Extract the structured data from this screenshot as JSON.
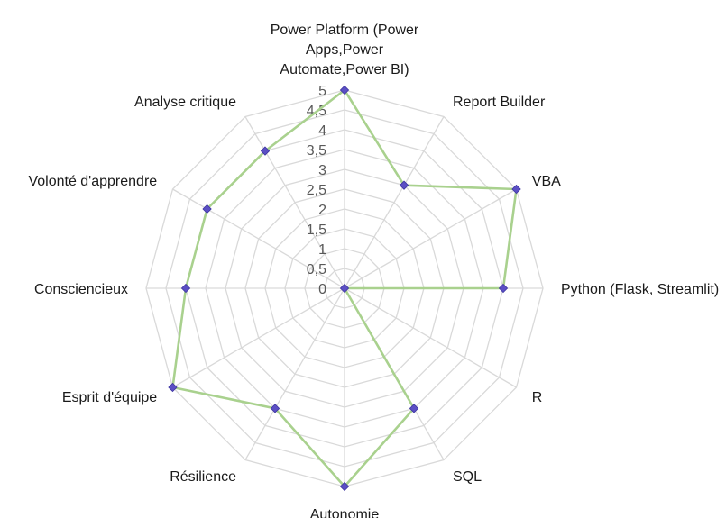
{
  "chart_data": {
    "type": "radar",
    "categories": [
      "Power Platform (Power Apps,Power Automate,Power BI)",
      "Report Builder",
      "VBA",
      "Python (Flask, Streamlit)",
      "R",
      "SQL",
      "Autonomie",
      "Résilience",
      "Esprit d'équipe",
      "Consciencieux",
      "Volonté d'apprendre",
      "Analyse critique"
    ],
    "series": [
      {
        "values": [
          5,
          3,
          5,
          4,
          0,
          3.5,
          5,
          3.5,
          5,
          4,
          4,
          4
        ]
      }
    ],
    "rlim": [
      0,
      5
    ],
    "ticks": [
      "0",
      "0,5",
      "1",
      "1,5",
      "2",
      "2,5",
      "3",
      "3,5",
      "4",
      "4,5",
      "5"
    ],
    "title": "",
    "legend": "none",
    "grid": true,
    "colors": {
      "line": "#a9d18e",
      "marker": "#5b4fc4",
      "grid": "#d9d9d9"
    }
  }
}
